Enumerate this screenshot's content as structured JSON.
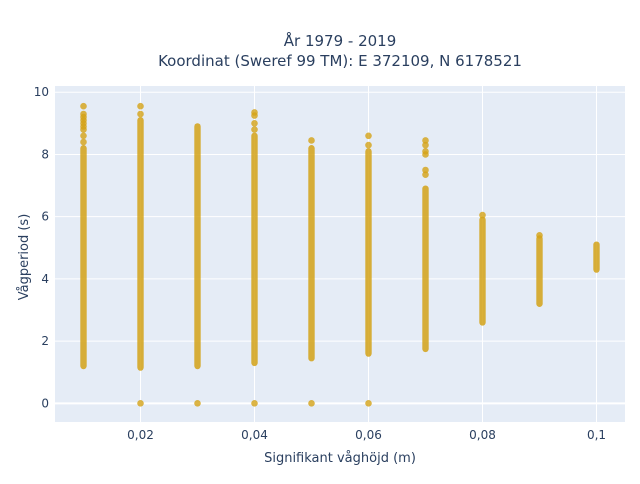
{
  "chart_data": {
    "type": "scatter",
    "title": [
      "År 1979 - 2019",
      "Koordinat (Sweref 99 TM): E 372109, N 6178521"
    ],
    "xlabel": "Signifikant våghöjd (m)",
    "ylabel": "Vågperiod (s)",
    "xlim": [
      0.005,
      0.105
    ],
    "ylim": [
      -0.6,
      10.2
    ],
    "x_ticks": [
      0.02,
      0.04,
      0.06,
      0.08,
      0.1
    ],
    "x_tick_labels": [
      "0,02",
      "0,04",
      "0,06",
      "0,08",
      "0,1"
    ],
    "y_ticks": [
      0,
      2,
      4,
      6,
      8,
      10
    ],
    "y_tick_labels": [
      "0",
      "2",
      "4",
      "6",
      "8",
      "10"
    ],
    "grid": true,
    "colors": {
      "marker": "#d4a216",
      "plot_bg": "#e5ecf6",
      "grid": "#ffffff",
      "text": "#2a3f5f"
    },
    "series": [
      {
        "x_groups": [
          {
            "x": 0.01,
            "y_min": 1.2,
            "y_max": 8.2,
            "extra_y": [
              8.4,
              8.6,
              8.8,
              8.9,
              9.0,
              9.1,
              9.2,
              9.3,
              9.55
            ]
          },
          {
            "x": 0.02,
            "y_min": 1.15,
            "y_max": 9.1,
            "extra_y": [
              0.0,
              9.3,
              9.55
            ]
          },
          {
            "x": 0.03,
            "y_min": 1.2,
            "y_max": 8.9,
            "extra_y": [
              0.0
            ]
          },
          {
            "x": 0.04,
            "y_min": 1.3,
            "y_max": 8.6,
            "extra_y": [
              0.0,
              8.8,
              9.0,
              9.25,
              9.35
            ]
          },
          {
            "x": 0.05,
            "y_min": 1.45,
            "y_max": 8.2,
            "extra_y": [
              0.0,
              8.45
            ]
          },
          {
            "x": 0.06,
            "y_min": 1.6,
            "y_max": 8.1,
            "extra_y": [
              0.0,
              8.3,
              8.6
            ]
          },
          {
            "x": 0.07,
            "y_min": 1.75,
            "y_max": 6.9,
            "extra_y": [
              7.35,
              7.5,
              8.0,
              8.1,
              8.3,
              8.45
            ]
          },
          {
            "x": 0.08,
            "y_min": 2.6,
            "y_max": 5.9,
            "extra_y": [
              6.05
            ]
          },
          {
            "x": 0.09,
            "y_min": 3.2,
            "y_max": 5.3,
            "extra_y": [
              5.4
            ]
          },
          {
            "x": 0.1,
            "y_min": 4.3,
            "y_max": 5.1,
            "extra_y": []
          }
        ]
      }
    ]
  }
}
